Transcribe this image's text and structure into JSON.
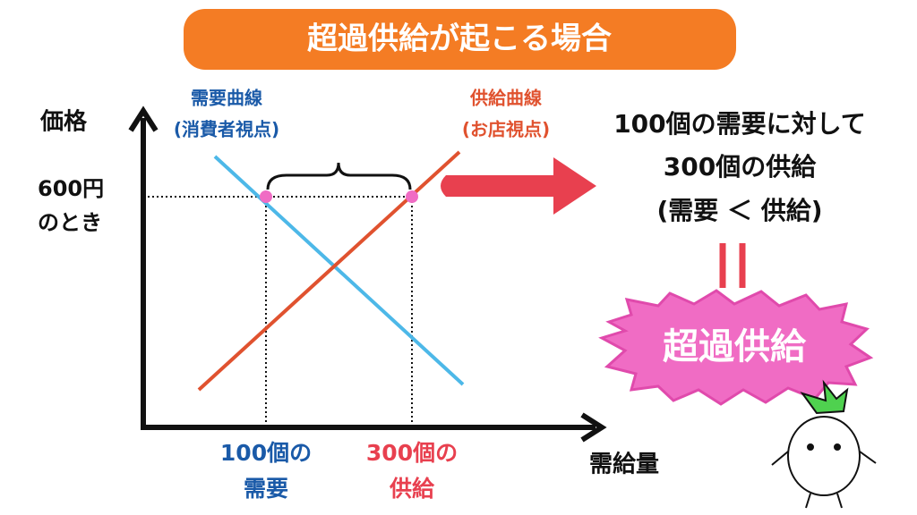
{
  "title": "超過供給が起こる場合",
  "graph": {
    "y_axis_label": "価格",
    "x_axis_label": "需給量",
    "demand_label": [
      "需要曲線",
      "(消費者視点)"
    ],
    "supply_label": [
      "供給曲線",
      "(お店視点)"
    ],
    "price_label": [
      "600円",
      "のとき"
    ],
    "demand_quantity_label": [
      "100個の",
      "需要"
    ],
    "supply_quantity_label": [
      "300個の",
      "供給"
    ]
  },
  "explanation": [
    "100個の需要に対して",
    "300個の供給",
    "(需要 ＜ 供給)"
  ],
  "result": "超過供給"
}
